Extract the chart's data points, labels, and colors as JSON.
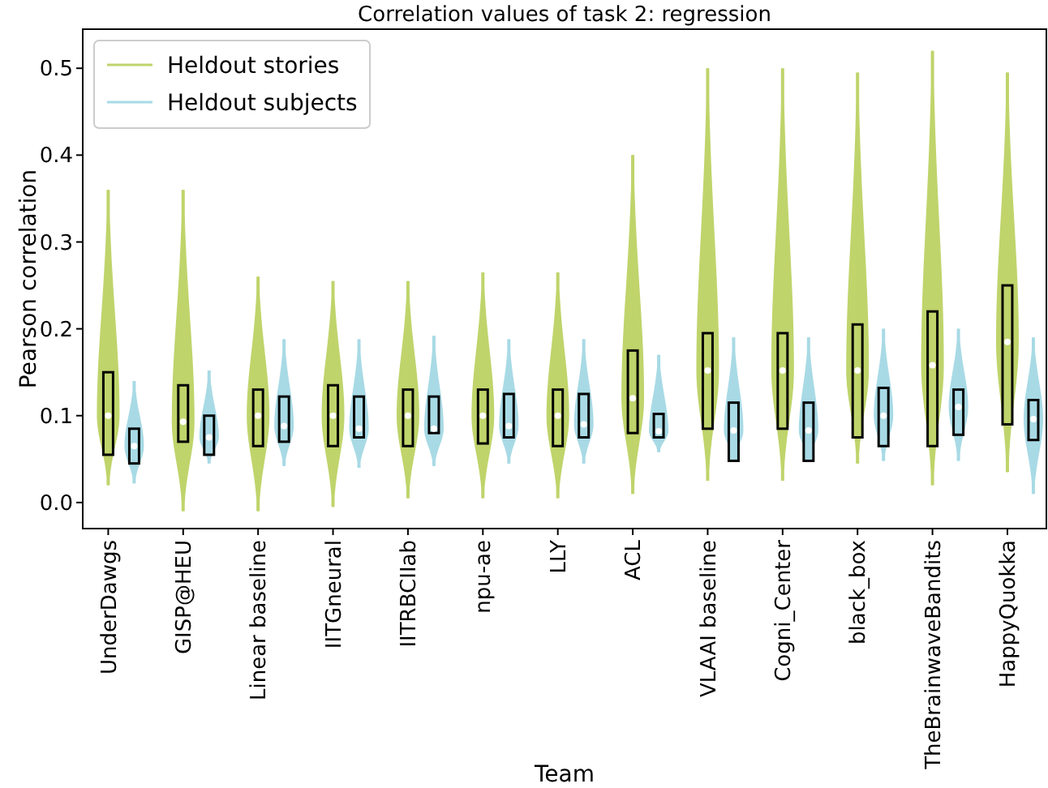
{
  "chart_data": {
    "type": "box",
    "title": "Correlation values of task 2: regression",
    "xlabel": "Team",
    "ylabel": "Pearson correlation",
    "categories": [
      "UnderDawgs",
      "GISP@HEU",
      "Linear baseline",
      "IITGneural",
      "IITRBCIIab",
      "npu-ae",
      "LLY",
      "ACL",
      "VLAAI baseline",
      "Cogni_Center",
      "black_box",
      "TheBrainwaveBandits",
      "HappyQuokka"
    ],
    "ylim": [
      -0.03,
      0.545
    ],
    "yticks": [
      {
        "value": 0,
        "label": "0.0"
      },
      0.1,
      0.2,
      0.3,
      0.4,
      0.5
    ],
    "legend": "top left",
    "series": [
      {
        "name": "Heldout stories",
        "color": "#bfd46b",
        "boxes": [
          {
            "low": 0.02,
            "q1": 0.055,
            "median": 0.1,
            "q3": 0.15,
            "high": 0.36
          },
          {
            "low": -0.01,
            "q1": 0.07,
            "median": 0.093,
            "q3": 0.135,
            "high": 0.36
          },
          {
            "low": -0.01,
            "q1": 0.065,
            "median": 0.1,
            "q3": 0.13,
            "high": 0.26
          },
          {
            "low": -0.005,
            "q1": 0.065,
            "median": 0.1,
            "q3": 0.135,
            "high": 0.255
          },
          {
            "low": 0.005,
            "q1": 0.065,
            "median": 0.1,
            "q3": 0.13,
            "high": 0.255
          },
          {
            "low": 0.005,
            "q1": 0.068,
            "median": 0.1,
            "q3": 0.13,
            "high": 0.265
          },
          {
            "low": 0.005,
            "q1": 0.065,
            "median": 0.1,
            "q3": 0.13,
            "high": 0.265
          },
          {
            "low": 0.01,
            "q1": 0.08,
            "median": 0.12,
            "q3": 0.175,
            "high": 0.4
          },
          {
            "low": 0.025,
            "q1": 0.085,
            "median": 0.152,
            "q3": 0.195,
            "high": 0.5
          },
          {
            "low": 0.025,
            "q1": 0.085,
            "median": 0.152,
            "q3": 0.195,
            "high": 0.5
          },
          {
            "low": 0.045,
            "q1": 0.075,
            "median": 0.152,
            "q3": 0.205,
            "high": 0.495
          },
          {
            "low": 0.02,
            "q1": 0.065,
            "median": 0.158,
            "q3": 0.22,
            "high": 0.52
          },
          {
            "low": 0.035,
            "q1": 0.09,
            "median": 0.185,
            "q3": 0.25,
            "high": 0.495
          }
        ]
      },
      {
        "name": "Heldout subjects",
        "color": "#a8dae5",
        "boxes": [
          {
            "low": 0.022,
            "q1": 0.045,
            "median": 0.065,
            "q3": 0.085,
            "high": 0.14
          },
          {
            "low": 0.045,
            "q1": 0.055,
            "median": 0.075,
            "q3": 0.1,
            "high": 0.152
          },
          {
            "low": 0.042,
            "q1": 0.07,
            "median": 0.088,
            "q3": 0.122,
            "high": 0.188
          },
          {
            "low": 0.04,
            "q1": 0.075,
            "median": 0.085,
            "q3": 0.122,
            "high": 0.188
          },
          {
            "low": 0.042,
            "q1": 0.08,
            "median": 0.085,
            "q3": 0.122,
            "high": 0.192
          },
          {
            "low": 0.045,
            "q1": 0.075,
            "median": 0.088,
            "q3": 0.125,
            "high": 0.188
          },
          {
            "low": 0.045,
            "q1": 0.075,
            "median": 0.09,
            "q3": 0.125,
            "high": 0.188
          },
          {
            "low": 0.058,
            "q1": 0.075,
            "median": 0.082,
            "q3": 0.102,
            "high": 0.17
          },
          {
            "low": 0.048,
            "q1": 0.048,
            "median": 0.083,
            "q3": 0.115,
            "high": 0.19
          },
          {
            "low": 0.048,
            "q1": 0.048,
            "median": 0.083,
            "q3": 0.115,
            "high": 0.19
          },
          {
            "low": 0.048,
            "q1": 0.065,
            "median": 0.1,
            "q3": 0.132,
            "high": 0.2
          },
          {
            "low": 0.048,
            "q1": 0.078,
            "median": 0.11,
            "q3": 0.13,
            "high": 0.2
          },
          {
            "low": 0.01,
            "q1": 0.072,
            "median": 0.096,
            "q3": 0.118,
            "high": 0.19
          }
        ]
      }
    ]
  }
}
